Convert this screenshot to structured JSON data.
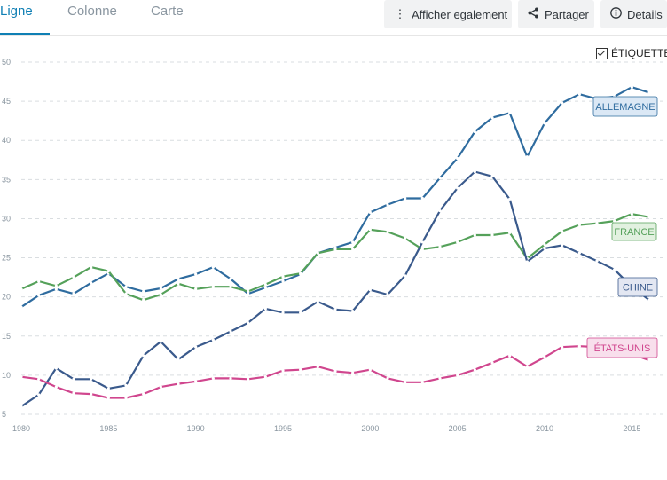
{
  "tabs": [
    {
      "label": "Ligne"
    },
    {
      "label": "Colonne"
    },
    {
      "label": "Carte"
    }
  ],
  "toolbar": {
    "show_also_label": "Afficher egalement",
    "share_label": "Partager",
    "details_label": "Details"
  },
  "labels_toggle": {
    "label": "ÉTIQUETTE",
    "checked": true
  },
  "chart_data": {
    "type": "line",
    "title": "",
    "xlabel": "",
    "ylabel": "",
    "x": [
      1980,
      1981,
      1982,
      1983,
      1984,
      1985,
      1986,
      1987,
      1988,
      1989,
      1990,
      1991,
      1992,
      1993,
      1994,
      1995,
      1996,
      1997,
      1998,
      1999,
      2000,
      2001,
      2002,
      2003,
      2004,
      2005,
      2006,
      2007,
      2008,
      2009,
      2010,
      2011,
      2012,
      2013,
      2014,
      2015,
      2016
    ],
    "ylim": [
      5,
      50
    ],
    "y_ticks": [
      5,
      10,
      15,
      20,
      25,
      30,
      35,
      40,
      45,
      50
    ],
    "x_ticks": [
      1980,
      1985,
      1990,
      1995,
      2000,
      2005,
      2010,
      2015
    ],
    "grid": true,
    "series": [
      {
        "name": "ALLEMAGNE",
        "color": "#2f6c9f",
        "label_bg": "#dbe8f5",
        "values": [
          18.7,
          20.2,
          21.0,
          20.4,
          21.8,
          23.0,
          21.3,
          20.7,
          21.1,
          22.3,
          22.9,
          23.8,
          22.3,
          20.4,
          21.2,
          22.0,
          22.9,
          25.6,
          26.3,
          27.0,
          30.8,
          31.8,
          32.6,
          32.6,
          35.2,
          37.7,
          41.1,
          42.9,
          43.5,
          37.9,
          42.2,
          44.8,
          45.9,
          45.3,
          45.6,
          46.8,
          46.1
        ]
      },
      {
        "name": "FRANCE",
        "color": "#55a15a",
        "label_bg": "#e2f1e0",
        "values": [
          21.0,
          22.0,
          21.4,
          22.5,
          23.8,
          23.3,
          20.4,
          19.6,
          20.3,
          21.7,
          21.0,
          21.3,
          21.3,
          20.7,
          21.6,
          22.6,
          23.0,
          25.6,
          26.1,
          26.1,
          28.6,
          28.3,
          27.5,
          26.1,
          26.4,
          27.0,
          27.9,
          27.9,
          28.2,
          24.9,
          26.7,
          28.4,
          29.2,
          29.4,
          29.7,
          30.6,
          30.2
        ]
      },
      {
        "name": "CHINE",
        "color": "#3a5a8c",
        "label_bg": "#e3e7f2",
        "values": [
          6.0,
          7.5,
          10.9,
          9.5,
          9.5,
          8.3,
          8.7,
          12.5,
          14.3,
          12.0,
          13.6,
          14.5,
          15.6,
          16.7,
          18.5,
          18.0,
          18.0,
          19.4,
          18.4,
          18.2,
          20.9,
          20.3,
          22.7,
          27.0,
          31.0,
          33.9,
          36.0,
          35.4,
          32.5,
          24.5,
          26.2,
          26.6,
          25.6,
          24.6,
          23.5,
          21.3,
          19.6
        ]
      },
      {
        "name": "ÉTATS-UNIS",
        "color": "#d0468e",
        "label_bg": "#f8dfec",
        "values": [
          9.8,
          9.5,
          8.5,
          7.7,
          7.6,
          7.1,
          7.1,
          7.6,
          8.5,
          8.9,
          9.2,
          9.6,
          9.6,
          9.5,
          9.8,
          10.6,
          10.7,
          11.1,
          10.5,
          10.3,
          10.7,
          9.6,
          9.1,
          9.1,
          9.6,
          10.0,
          10.7,
          11.6,
          12.5,
          11.1,
          12.3,
          13.6,
          13.7,
          13.6,
          13.6,
          12.7,
          11.9
        ]
      }
    ]
  }
}
